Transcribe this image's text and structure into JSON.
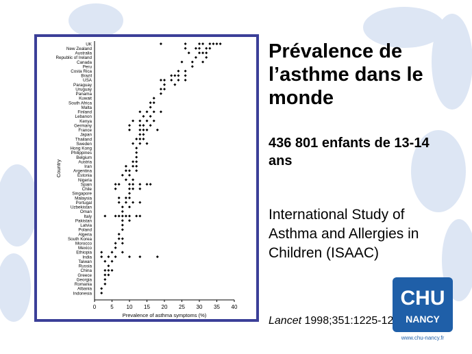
{
  "chart_data": {
    "type": "strip",
    "categories": [
      "UK",
      "New Zealand",
      "Australia",
      "Republic of Ireland",
      "Canada",
      "Peru",
      "Costa Rica",
      "Brazil",
      "USA",
      "Paraguay",
      "Uruguay",
      "Panama",
      "Kuwait",
      "South Africa",
      "Malta",
      "Finland",
      "Lebanon",
      "Kenya",
      "Germany",
      "France",
      "Japan",
      "Thailand",
      "Sweden",
      "Hong Kong",
      "Philippines",
      "Belgium",
      "Austria",
      "Iran",
      "Argentina",
      "Estonia",
      "Nigeria",
      "Spain",
      "Chile",
      "Singapore",
      "Malaysia",
      "Portugal",
      "Uzbekistan",
      "Oman",
      "Italy",
      "Pakistan",
      "Latvia",
      "Poland",
      "Algeria",
      "South Korea",
      "Morocco",
      "Mexico",
      "Ethiopia",
      "India",
      "Taiwan",
      "Russia",
      "China",
      "Greece",
      "Georgia",
      "Romania",
      "Albania",
      "Indonesia"
    ],
    "values": [
      [
        19,
        26,
        30,
        31,
        33,
        34,
        35,
        36
      ],
      [
        26,
        29,
        30,
        32,
        33
      ],
      [
        27,
        30,
        31,
        32
      ],
      [
        29,
        32
      ],
      [
        25,
        28,
        31
      ],
      [
        28
      ],
      [
        24,
        26
      ],
      [
        22,
        23,
        24,
        26
      ],
      [
        19,
        20,
        22,
        24,
        26
      ],
      [
        20,
        23
      ],
      [
        19,
        20
      ],
      [
        19
      ],
      [
        17
      ],
      [
        16,
        17
      ],
      [
        16
      ],
      [
        13,
        15,
        17,
        19
      ],
      [
        14,
        16
      ],
      [
        11,
        13,
        15,
        17
      ],
      [
        10,
        13,
        14,
        16
      ],
      [
        10,
        13,
        14,
        15,
        18
      ],
      [
        13,
        14
      ],
      [
        12,
        13,
        14
      ],
      [
        11,
        13,
        15
      ],
      [
        12
      ],
      [
        12
      ],
      [
        12
      ],
      [
        11,
        12
      ],
      [
        9,
        11,
        12
      ],
      [
        9,
        10,
        12
      ],
      [
        8,
        10
      ],
      [
        9,
        11
      ],
      [
        6,
        7,
        10,
        11,
        13,
        15,
        16
      ],
      [
        6,
        10,
        11,
        13
      ],
      [
        10
      ],
      [
        7,
        9,
        10
      ],
      [
        7,
        9,
        11,
        13
      ],
      [
        8,
        10
      ],
      [
        8
      ],
      [
        3,
        6,
        7,
        8,
        9,
        10,
        12,
        13
      ],
      [
        8,
        10
      ],
      [
        8
      ],
      [
        8
      ],
      [
        7
      ],
      [
        7,
        8
      ],
      [
        6,
        8
      ],
      [
        6
      ],
      [
        2,
        5,
        8
      ],
      [
        2,
        4,
        6,
        10,
        13,
        18
      ],
      [
        3,
        5
      ],
      [
        4
      ],
      [
        3,
        4,
        5
      ],
      [
        3,
        4
      ],
      [
        3
      ],
      [
        3
      ],
      [
        2
      ],
      [
        2
      ]
    ],
    "color": "#000000",
    "xlim": [
      0,
      40
    ],
    "xticks": [
      0,
      5,
      10,
      15,
      20,
      25,
      30,
      35,
      40
    ],
    "xlabel": "Prevalence of asthma symptoms (%)",
    "ylabel": "Country"
  },
  "slide": {
    "title": "Prévalence de l’asthme dans le monde",
    "subtitle": "436 801 enfants de 13-14 ans",
    "body": "International Study of Asthma and Allergies in Children (ISAAC)",
    "citation_journal": "Lancet",
    "citation_ref": "1998;351:1225-1232"
  },
  "logo": {
    "name": "CHU",
    "city": "NANCY",
    "url": "www.chu-nancy.fr"
  }
}
